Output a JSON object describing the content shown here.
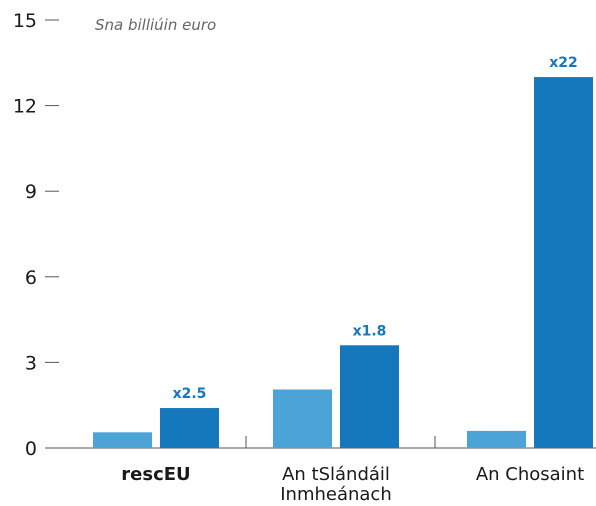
{
  "chart_data": {
    "type": "bar",
    "unit_label": "Sna billiúin euro",
    "categories": [
      {
        "lines": [
          "rescEU"
        ],
        "bold": true
      },
      {
        "lines": [
          "An tSlándáil",
          "Inmheánach"
        ],
        "bold": false
      },
      {
        "lines": [
          "An Chosaint"
        ],
        "bold": false
      }
    ],
    "series": [
      {
        "values": [
          0.55,
          2.05,
          0.6
        ],
        "color": "#4ba3d6"
      },
      {
        "values": [
          1.4,
          3.6,
          13.0
        ],
        "color": "#1577bc"
      }
    ],
    "multipliers": [
      "x2.5",
      "x1.8",
      "x22"
    ],
    "multiplier_color": "#1577bc",
    "ylim": [
      0,
      15
    ],
    "yticks": [
      0,
      3,
      6,
      9,
      12,
      15
    ],
    "grid": false
  }
}
